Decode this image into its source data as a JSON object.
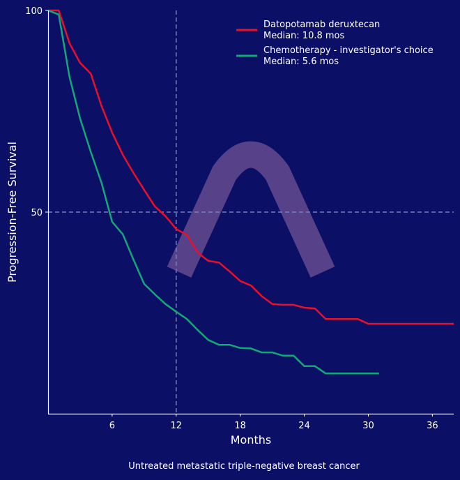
{
  "chart_data": {
    "type": "line",
    "title": "",
    "xlabel": "Months",
    "ylabel": "Progression-Free Survival",
    "caption": "Untreated metastatic triple-negative breast cancer",
    "xlim": [
      0,
      38
    ],
    "ylim": [
      0,
      100
    ],
    "xticks": [
      6,
      12,
      18,
      24,
      30,
      36
    ],
    "yticks": [
      50,
      100
    ],
    "reference_lines": {
      "x": 12,
      "y": 50
    },
    "legend_position": "top-right",
    "series": [
      {
        "name": "Datopotamab deruxtecan",
        "median_label": "Median: 10.8 mos",
        "color": "#e8102a",
        "x": [
          0,
          1,
          2,
          3,
          4,
          5,
          6,
          7,
          8,
          9,
          10,
          11,
          12,
          13,
          14,
          15,
          16,
          17,
          18,
          19,
          20,
          21,
          22,
          23,
          24,
          25,
          26,
          27,
          28,
          29,
          30,
          38
        ],
        "y": [
          100,
          100,
          91.9,
          87,
          84.3,
          76.3,
          69.7,
          64.2,
          59.7,
          55.5,
          51.4,
          49,
          45.8,
          44.3,
          40,
          37.9,
          37.5,
          35.3,
          32.9,
          31.8,
          29.2,
          27.2,
          27,
          27,
          26.3,
          26.1,
          23.5,
          23.5,
          23.5,
          23.5,
          22.3,
          22.3
        ]
      },
      {
        "name": "Chemotherapy - investigator's choice",
        "median_label": "Median: 5.6 mos",
        "color": "#12a877",
        "x": [
          0,
          1,
          2,
          3,
          4,
          5,
          6,
          7,
          8,
          9,
          10,
          11,
          12,
          13,
          14,
          15,
          16,
          17,
          18,
          19,
          20,
          21,
          22,
          23,
          24,
          25,
          26,
          31
        ],
        "y": [
          100,
          99,
          83.6,
          73.2,
          64.9,
          57.3,
          47.6,
          44.5,
          38.2,
          32.2,
          29.6,
          27.2,
          25.3,
          23.5,
          20.8,
          18.3,
          17.1,
          17.1,
          16.3,
          16.2,
          15.2,
          15.2,
          14.4,
          14.4,
          11.8,
          11.8,
          10,
          10
        ]
      }
    ]
  }
}
